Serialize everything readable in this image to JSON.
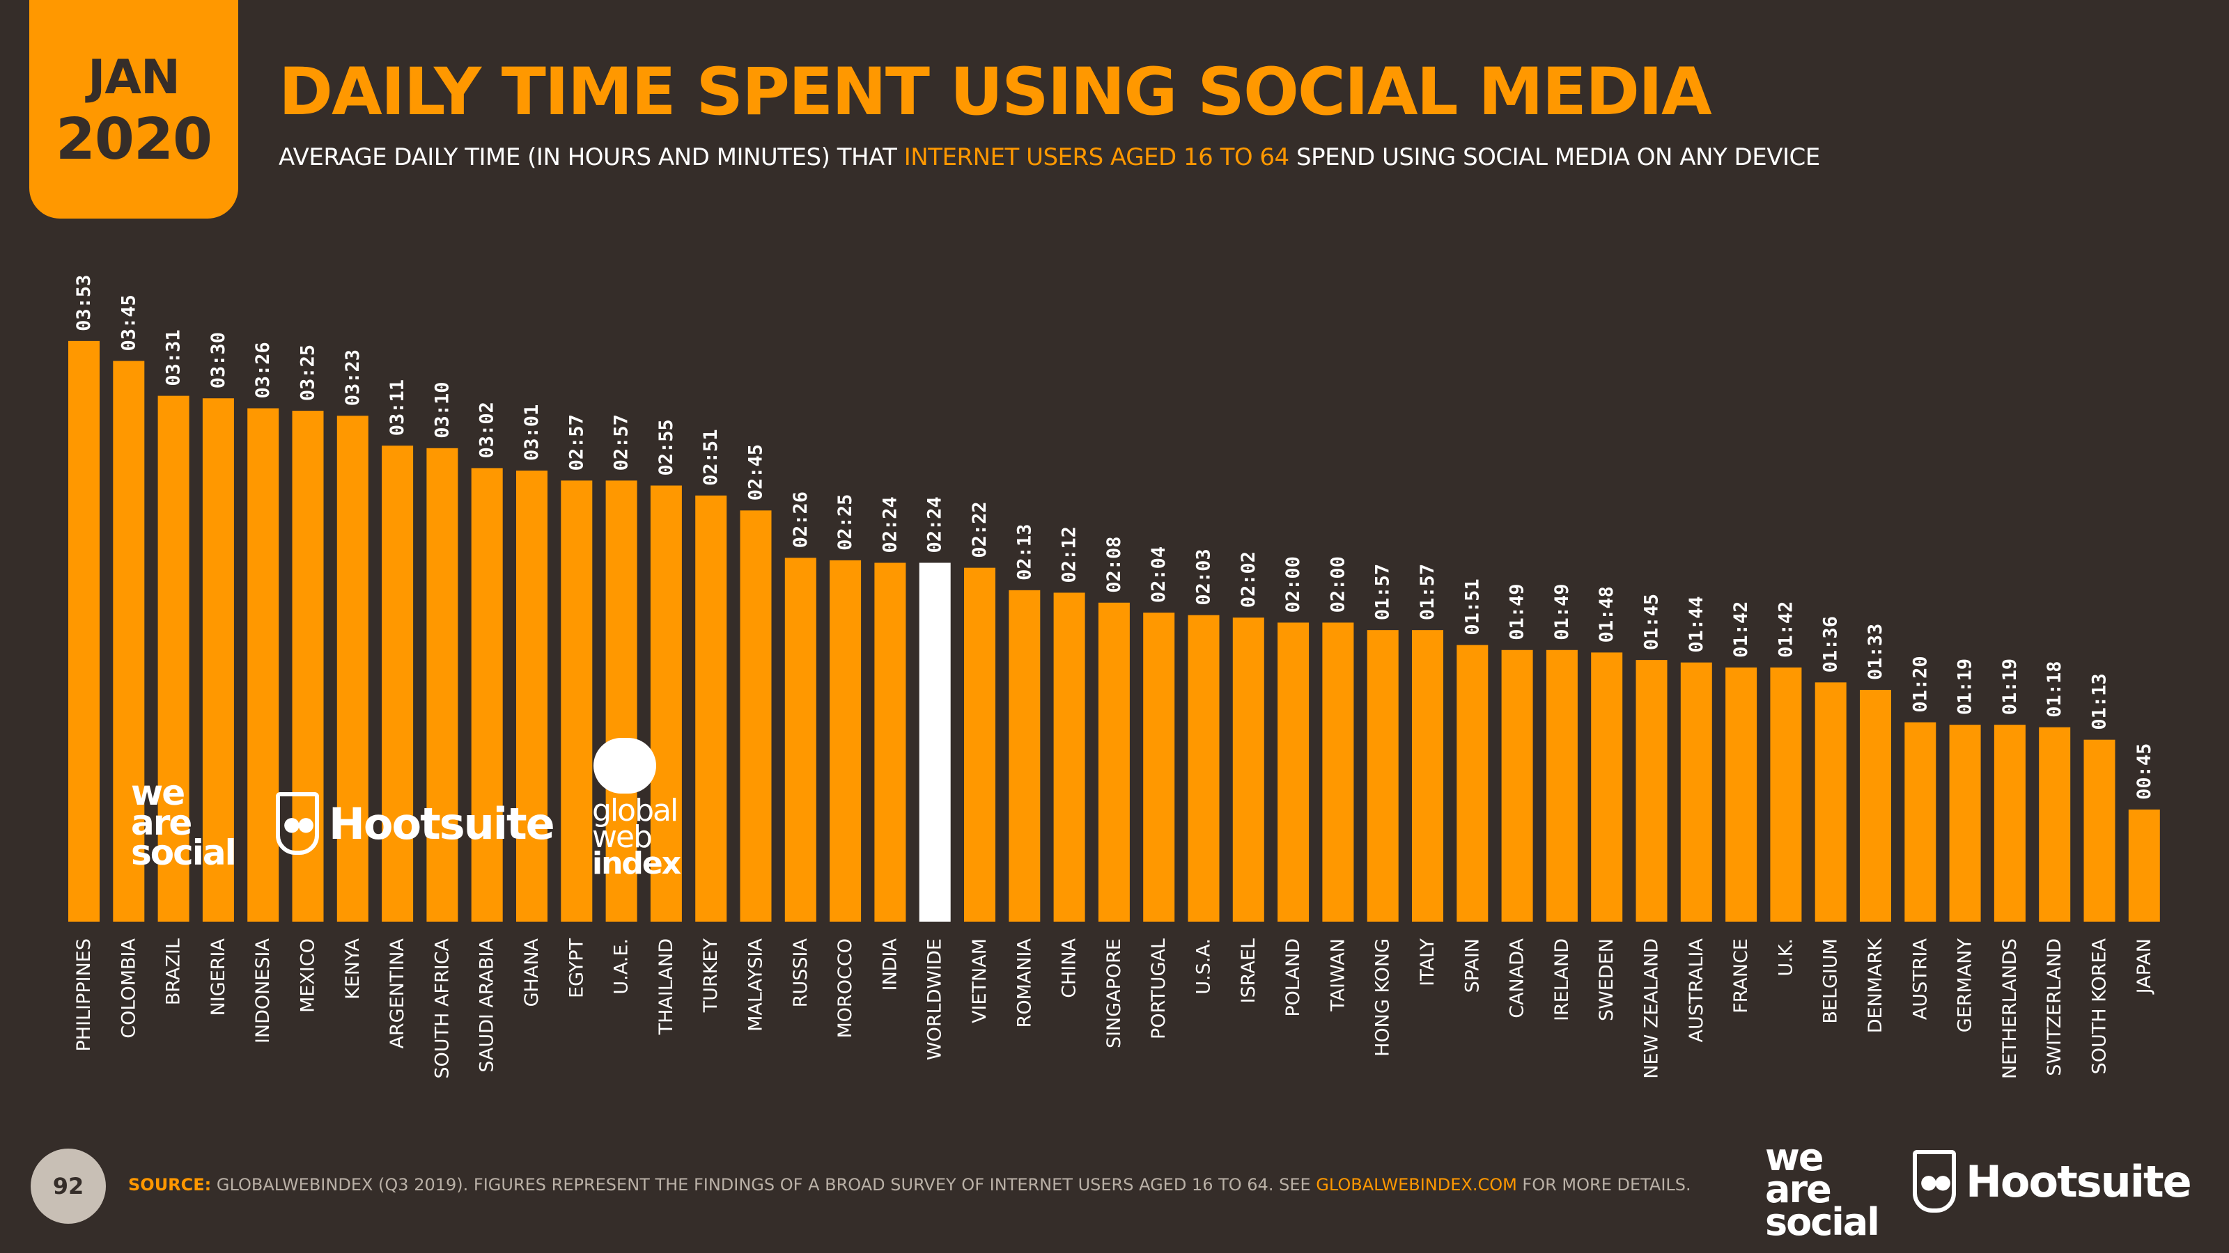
{
  "header": {
    "month": "JAN",
    "year": "2020",
    "title": "DAILY TIME SPENT USING SOCIAL MEDIA",
    "subtitle_part1": "AVERAGE DAILY TIME (IN HOURS AND MINUTES) THAT ",
    "subtitle_highlight": "INTERNET USERS AGED 16 TO 64",
    "subtitle_part2": " SPEND USING SOCIAL MEDIA ON ANY DEVICE"
  },
  "logos": {
    "we_are_social": [
      "we",
      "are",
      "social"
    ],
    "hootsuite": "Hootsuite",
    "gwi": [
      "global",
      "web",
      "index"
    ]
  },
  "footer": {
    "page_number": "92",
    "source_label": "SOURCE:",
    "source_text": " GLOBALWEBINDEX (Q3 2019). FIGURES REPRESENT THE FINDINGS OF A BROAD SURVEY OF INTERNET USERS AGED 16 TO 64. SEE ",
    "source_link": "GLOBALWEBINDEX.COM",
    "source_tail": " FOR MORE DETAILS."
  },
  "colors": {
    "background": "#352d29",
    "bar": "#ff9800",
    "highlight_bar": "#ffffff",
    "text": "#ffffff"
  },
  "chart_data": {
    "type": "bar",
    "highlight_category": "WORLDWIDE",
    "grid": false,
    "categories": [
      "PHILIPPINES",
      "COLOMBIA",
      "BRAZIL",
      "NIGERIA",
      "INDONESIA",
      "MEXICO",
      "KENYA",
      "ARGENTINA",
      "SOUTH AFRICA",
      "SAUDI ARABIA",
      "GHANA",
      "EGYPT",
      "U.A.E.",
      "THAILAND",
      "TURKEY",
      "MALAYSIA",
      "RUSSIA",
      "MOROCCO",
      "INDIA",
      "WORLDWIDE",
      "VIETNAM",
      "ROMANIA",
      "CHINA",
      "SINGAPORE",
      "PORTUGAL",
      "U.S.A.",
      "ISRAEL",
      "POLAND",
      "TAIWAN",
      "HONG KONG",
      "ITALY",
      "SPAIN",
      "CANADA",
      "IRELAND",
      "SWEDEN",
      "NEW ZEALAND",
      "AUSTRALIA",
      "FRANCE",
      "U.K.",
      "BELGIUM",
      "DENMARK",
      "AUSTRIA",
      "GERMANY",
      "NETHERLANDS",
      "SWITZERLAND",
      "SOUTH KOREA",
      "JAPAN"
    ],
    "value_labels": [
      "03:53",
      "03:45",
      "03:31",
      "03:30",
      "03:26",
      "03:25",
      "03:23",
      "03:11",
      "03:10",
      "03:02",
      "03:01",
      "02:57",
      "02:57",
      "02:55",
      "02:51",
      "02:45",
      "02:26",
      "02:25",
      "02:24",
      "02:24",
      "02:22",
      "02:13",
      "02:12",
      "02:08",
      "02:04",
      "02:03",
      "02:02",
      "02:00",
      "02:00",
      "01:57",
      "01:57",
      "01:51",
      "01:49",
      "01:49",
      "01:48",
      "01:45",
      "01:44",
      "01:42",
      "01:42",
      "01:36",
      "01:33",
      "01:20",
      "01:19",
      "01:19",
      "01:18",
      "01:13",
      "00:45"
    ],
    "values_minutes": [
      233,
      225,
      211,
      210,
      206,
      205,
      203,
      191,
      190,
      182,
      181,
      177,
      177,
      175,
      171,
      165,
      146,
      145,
      144,
      144,
      142,
      133,
      132,
      128,
      124,
      123,
      122,
      120,
      120,
      117,
      117,
      111,
      109,
      109,
      108,
      105,
      104,
      102,
      102,
      96,
      93,
      80,
      79,
      79,
      78,
      73,
      45
    ]
  }
}
